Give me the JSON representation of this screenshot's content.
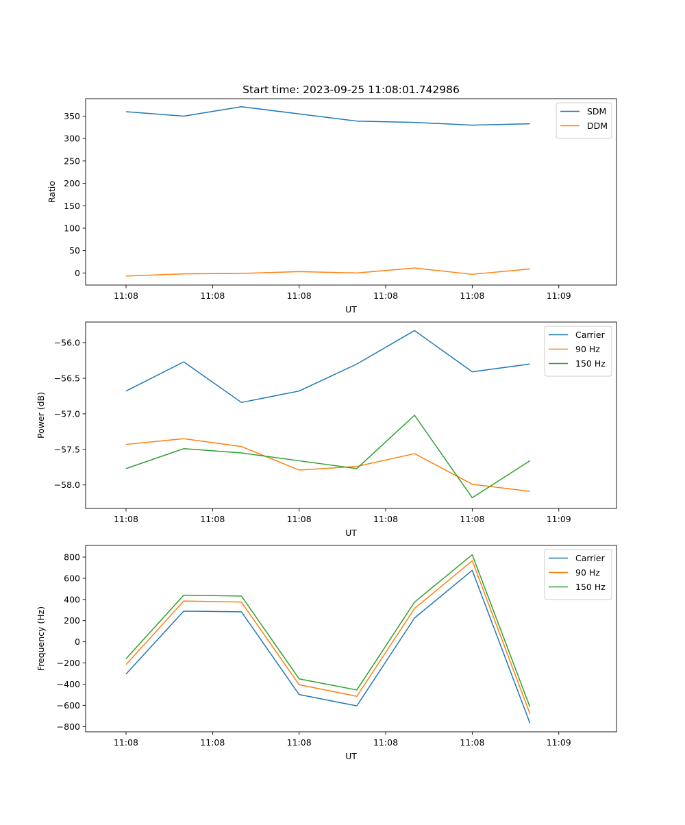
{
  "figure_title": "Start time: 2023-09-25 11:08:01.742986",
  "colors": {
    "blue": "#1f77b4",
    "orange": "#ff7f0e",
    "green": "#2ca02c"
  },
  "chart_data": [
    {
      "type": "line",
      "title": "Start time: 2023-09-25 11:08:01.742986",
      "xlabel": "UT",
      "ylabel": "Ratio",
      "xlim": [
        -0.35,
        4.25
      ],
      "ylim": [
        -27,
        389
      ],
      "x_ticks": [
        0,
        0.75,
        1.5,
        2.25,
        3,
        3.75
      ],
      "x_tick_labels": [
        "11:08",
        "11:08",
        "11:08",
        "11:08",
        "11:08",
        "11:09"
      ],
      "y_ticks": [
        0,
        50,
        100,
        150,
        200,
        250,
        300,
        350
      ],
      "y_tick_labels": [
        "0",
        "50",
        "100",
        "150",
        "200",
        "250",
        "300",
        "350"
      ],
      "x": [
        0,
        0.5,
        1,
        1.5,
        2,
        2.5,
        3,
        3.5
      ],
      "series": [
        {
          "name": "SDM",
          "color": "#1f77b4",
          "values": [
            360,
            350,
            371,
            355,
            339,
            336,
            330,
            333
          ]
        },
        {
          "name": "DDM",
          "color": "#ff7f0e",
          "values": [
            -7,
            -2,
            -1,
            3,
            0,
            11,
            -3,
            9
          ]
        }
      ],
      "legend": "top-right",
      "grid": false
    },
    {
      "type": "line",
      "title": "",
      "xlabel": "UT",
      "ylabel": "Power (dB)",
      "xlim": [
        -0.35,
        4.25
      ],
      "ylim": [
        -58.33,
        -55.71
      ],
      "x_ticks": [
        0,
        0.75,
        1.5,
        2.25,
        3,
        3.75
      ],
      "x_tick_labels": [
        "11:08",
        "11:08",
        "11:08",
        "11:08",
        "11:08",
        "11:09"
      ],
      "y_ticks": [
        -58.0,
        -57.5,
        -57.0,
        -56.5,
        -56.0
      ],
      "y_tick_labels": [
        "−58.0",
        "−57.5",
        "−57.0",
        "−56.5",
        "−56.0"
      ],
      "x": [
        0,
        0.5,
        1,
        1.5,
        2,
        2.5,
        3,
        3.5
      ],
      "series": [
        {
          "name": "Carrier",
          "color": "#1f77b4",
          "values": [
            -56.68,
            -56.27,
            -56.84,
            -56.68,
            -56.3,
            -55.83,
            -56.41,
            -56.3
          ]
        },
        {
          "name": "90 Hz",
          "color": "#ff7f0e",
          "values": [
            -57.43,
            -57.35,
            -57.46,
            -57.79,
            -57.74,
            -57.56,
            -57.99,
            -58.09
          ]
        },
        {
          "name": "150 Hz",
          "color": "#2ca02c",
          "values": [
            -57.77,
            -57.49,
            -57.55,
            -57.66,
            -57.77,
            -57.02,
            -58.18,
            -57.66
          ]
        }
      ],
      "legend": "top-right",
      "grid": false
    },
    {
      "type": "line",
      "title": "",
      "xlabel": "UT",
      "ylabel": "Frequency (Hz)",
      "xlim": [
        -0.35,
        4.25
      ],
      "ylim": [
        -850,
        910
      ],
      "x_ticks": [
        0,
        0.75,
        1.5,
        2.25,
        3,
        3.75
      ],
      "x_tick_labels": [
        "11:08",
        "11:08",
        "11:08",
        "11:08",
        "11:08",
        "11:09"
      ],
      "y_ticks": [
        -800,
        -600,
        -400,
        -200,
        0,
        200,
        400,
        600,
        800
      ],
      "y_tick_labels": [
        "−800",
        "−600",
        "−400",
        "−200",
        "0",
        "200",
        "400",
        "600",
        "800"
      ],
      "x": [
        0,
        0.5,
        1,
        1.5,
        2,
        2.5,
        3,
        3.5
      ],
      "series": [
        {
          "name": "Carrier",
          "color": "#1f77b4",
          "values": [
            -305,
            290,
            283,
            -498,
            -605,
            225,
            675,
            -768
          ]
        },
        {
          "name": "90 Hz",
          "color": "#ff7f0e",
          "values": [
            -215,
            385,
            375,
            -405,
            -515,
            315,
            765,
            -680
          ]
        },
        {
          "name": "150 Hz",
          "color": "#2ca02c",
          "values": [
            -160,
            440,
            432,
            -350,
            -455,
            375,
            822,
            -615
          ]
        }
      ],
      "legend": "top-right",
      "grid": false
    }
  ]
}
